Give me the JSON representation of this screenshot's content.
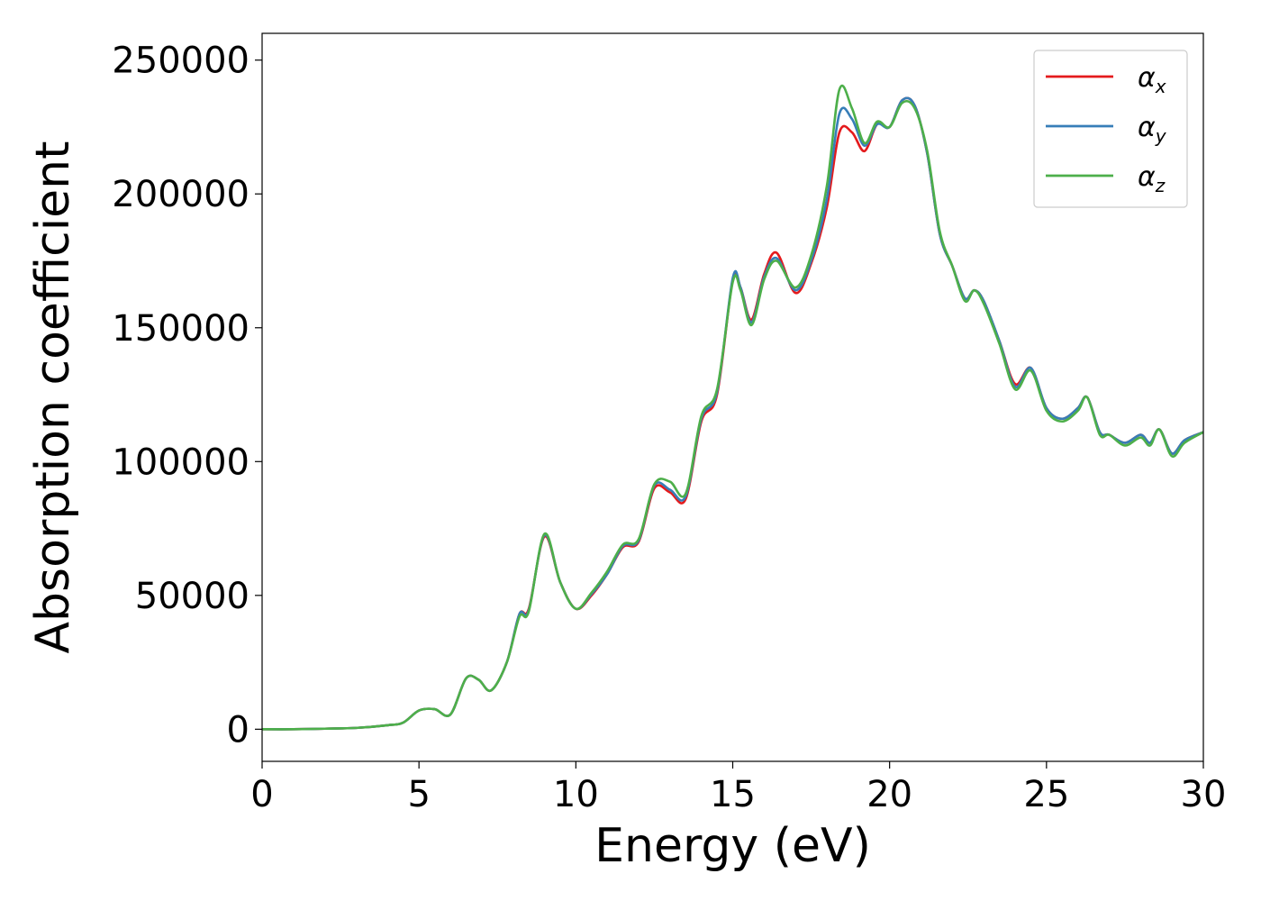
{
  "chart_data": {
    "type": "line",
    "title": "",
    "xlabel": "Energy (eV)",
    "ylabel": "Absorption coefficient",
    "xlim": [
      0,
      30
    ],
    "ylim": [
      -12000,
      260000
    ],
    "x_ticks": [
      0,
      5,
      10,
      15,
      20,
      25,
      30
    ],
    "x_tick_labels": [
      "0",
      "5",
      "10",
      "15",
      "20",
      "25",
      "30"
    ],
    "y_ticks": [
      0,
      50000,
      100000,
      150000,
      200000,
      250000
    ],
    "y_tick_labels": [
      "0",
      "50000",
      "100000",
      "150000",
      "200000",
      "250000"
    ],
    "grid": false,
    "legend_position": "top-right",
    "x": [
      0,
      1,
      2,
      3,
      4,
      4.5,
      5,
      5.5,
      6,
      6.5,
      6.9,
      7.3,
      7.8,
      8.2,
      8.5,
      9,
      9.5,
      10,
      10.5,
      11,
      11.5,
      12,
      12.5,
      13,
      13.5,
      14,
      14.5,
      15,
      15.25,
      15.6,
      16,
      16.4,
      17,
      17.5,
      18,
      18.4,
      18.8,
      19.2,
      19.6,
      20,
      20.4,
      20.8,
      21.2,
      21.6,
      22,
      22.4,
      22.7,
      23,
      23.5,
      24,
      24.5,
      25,
      25.5,
      26,
      26.3,
      26.7,
      27,
      27.5,
      28,
      28.3,
      28.6,
      29,
      29.4,
      30
    ],
    "series": [
      {
        "name": "α",
        "subscript": "x",
        "color": "#e41a1c",
        "values": [
          0,
          0,
          200,
          500,
          1500,
          2500,
          7000,
          7500,
          5500,
          19000,
          18500,
          14500,
          25000,
          43000,
          45000,
          72000,
          55000,
          45000,
          50000,
          58000,
          68000,
          70000,
          90000,
          88500,
          86000,
          115000,
          125000,
          168000,
          165000,
          153000,
          170000,
          178000,
          163000,
          174000,
          195000,
          223000,
          223000,
          216000,
          226000,
          225000,
          235000,
          233000,
          215000,
          185000,
          173000,
          161000,
          164000,
          160000,
          145000,
          129000,
          135000,
          120000,
          116000,
          120000,
          124000,
          111000,
          110000,
          107000,
          110000,
          107000,
          112000,
          103000,
          108000,
          111000
        ]
      },
      {
        "name": "α",
        "subscript": "y",
        "color": "#377eb8",
        "values": [
          0,
          0,
          200,
          500,
          1500,
          2500,
          7000,
          7500,
          5500,
          19000,
          18500,
          14500,
          25000,
          43000,
          44500,
          72500,
          55000,
          45000,
          50500,
          58000,
          68500,
          70500,
          91000,
          89500,
          87000,
          116000,
          126000,
          168500,
          165000,
          152000,
          169000,
          176000,
          164000,
          175000,
          198000,
          230000,
          228000,
          218000,
          226000,
          225000,
          235000,
          233000,
          215000,
          185000,
          173000,
          161000,
          164000,
          160000,
          145000,
          128000,
          135000,
          120000,
          116000,
          120000,
          124000,
          111000,
          110000,
          107000,
          110000,
          107000,
          112000,
          103000,
          108000,
          111000
        ]
      },
      {
        "name": "α",
        "subscript": "z",
        "color": "#4daf4a",
        "values": [
          0,
          0,
          200,
          500,
          1500,
          2500,
          7000,
          7500,
          5500,
          19000,
          18500,
          14500,
          25000,
          42000,
          44000,
          73000,
          55000,
          45000,
          51000,
          59000,
          69000,
          71000,
          91500,
          92500,
          88000,
          117000,
          127000,
          167000,
          164000,
          151000,
          168000,
          175000,
          165000,
          177000,
          203000,
          239000,
          232000,
          219000,
          227000,
          225000,
          234000,
          232000,
          216000,
          186000,
          173000,
          160000,
          164000,
          159000,
          144000,
          127000,
          134000,
          119000,
          115000,
          119000,
          124000,
          110000,
          110000,
          106000,
          109000,
          106000,
          112000,
          102000,
          107000,
          111000
        ]
      }
    ]
  }
}
